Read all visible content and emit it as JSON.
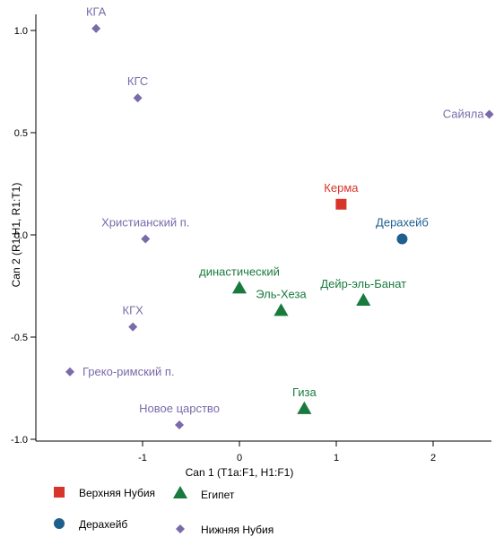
{
  "chart_data": {
    "type": "scatter",
    "xlabel": "Can 1 (T1a:F1, H1:F1)",
    "ylabel": "Can 2 (R1:H1, R1:T1)",
    "xlim": [
      -1.9,
      2.6
    ],
    "ylim": [
      -1.05,
      1.1
    ],
    "xticks": [
      {
        "value": -1,
        "label": "-1"
      },
      {
        "value": 0,
        "label": "0"
      },
      {
        "value": 1,
        "label": "1"
      },
      {
        "value": 2,
        "label": "2"
      }
    ],
    "yticks": [
      {
        "value": -1.0,
        "label": "-1.0"
      },
      {
        "value": -0.5,
        "label": "-0.5"
      },
      {
        "value": 0.0,
        "label": "0.0"
      },
      {
        "value": 0.5,
        "label": "0.5"
      },
      {
        "value": 1.0,
        "label": "1.0"
      }
    ],
    "grid": false,
    "legend_position": "bottom-left",
    "series": [
      {
        "name": "Верхняя Нубия",
        "marker": "square",
        "color": "#d7342a",
        "points": [
          {
            "label": "Керма",
            "x": 1.05,
            "y": 0.15
          }
        ]
      },
      {
        "name": "Египет",
        "marker": "triangle",
        "color": "#197a3d",
        "points": [
          {
            "label": "династический",
            "x": 0.0,
            "y": -0.26
          },
          {
            "label": "Эль-Хеза",
            "x": 0.43,
            "y": -0.37
          },
          {
            "label": "Дейр-эль-Банат",
            "x": 1.28,
            "y": -0.32
          },
          {
            "label": "Гиза",
            "x": 0.67,
            "y": -0.85
          }
        ]
      },
      {
        "name": "Дерахейб",
        "marker": "circle",
        "color": "#1f5f8e",
        "points": [
          {
            "label": "Дерахейб",
            "x": 1.68,
            "y": -0.02
          }
        ]
      },
      {
        "name": "Нижняя Нубия",
        "marker": "diamond",
        "color": "#7a6aaa",
        "points": [
          {
            "label": "КГА",
            "x": -1.48,
            "y": 1.01
          },
          {
            "label": "КГС",
            "x": -1.05,
            "y": 0.67
          },
          {
            "label": "Сайяла",
            "x": 2.58,
            "y": 0.59
          },
          {
            "label": "Христианский п.",
            "x": -0.97,
            "y": -0.02
          },
          {
            "label": "КГХ",
            "x": -1.1,
            "y": -0.45
          },
          {
            "label": "Греко-римский п.",
            "x": -1.75,
            "y": -0.67
          },
          {
            "label": "Новое царство",
            "x": -0.62,
            "y": -0.93
          }
        ]
      }
    ]
  }
}
